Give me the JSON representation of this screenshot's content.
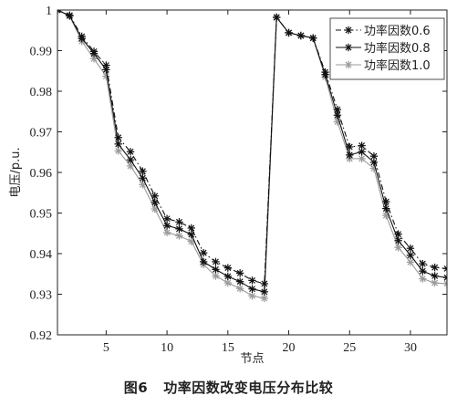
{
  "caption": "图6   功率因数改变电压分布比较",
  "chart_data": {
    "type": "line",
    "xlabel": "节点",
    "ylabel": "电压/p.u.",
    "xlim": [
      1,
      33
    ],
    "ylim": [
      0.92,
      1.0
    ],
    "xticks": [
      5,
      10,
      15,
      20,
      25,
      30
    ],
    "yticks": [
      0.92,
      0.93,
      0.94,
      0.95,
      0.96,
      0.97,
      0.98,
      0.99,
      1
    ],
    "ytick_labels": [
      "0.92",
      "0.93",
      "0.94",
      "0.95",
      "0.96",
      "0.97",
      "0.98",
      "0.99",
      "1"
    ],
    "grid": false,
    "legend_position": "top-right",
    "x": [
      1,
      2,
      3,
      4,
      5,
      6,
      7,
      8,
      9,
      10,
      11,
      12,
      13,
      14,
      15,
      16,
      17,
      18,
      19,
      20,
      21,
      22,
      23,
      24,
      25,
      26,
      27,
      28,
      29,
      30,
      31,
      32,
      33
    ],
    "series": [
      {
        "name": "功率因数0.6",
        "color": "#111111",
        "dash": "6,3,1.5,3",
        "values": [
          1.0,
          0.9987,
          0.9935,
          0.9898,
          0.9864,
          0.9686,
          0.9651,
          0.9603,
          0.9542,
          0.9486,
          0.9478,
          0.9463,
          0.9402,
          0.938,
          0.9365,
          0.9352,
          0.9334,
          0.9326,
          0.9982,
          0.9944,
          0.9937,
          0.9931,
          0.9847,
          0.9755,
          0.9663,
          0.9666,
          0.964,
          0.9528,
          0.9448,
          0.9413,
          0.9375,
          0.9366,
          0.9363
        ]
      },
      {
        "name": "功率因数0.8",
        "color": "#111111",
        "dash": "",
        "values": [
          1.0,
          0.9986,
          0.993,
          0.9893,
          0.9853,
          0.967,
          0.9631,
          0.9586,
          0.9526,
          0.9469,
          0.9461,
          0.9447,
          0.938,
          0.9361,
          0.9344,
          0.9331,
          0.9313,
          0.9306,
          0.9982,
          0.9944,
          0.9937,
          0.9931,
          0.9841,
          0.9741,
          0.9643,
          0.9651,
          0.9625,
          0.9511,
          0.9432,
          0.9396,
          0.9357,
          0.9345,
          0.9341
        ]
      },
      {
        "name": "功率因数1.0",
        "color": "#9a9a9a",
        "dash": "",
        "values": [
          1.0,
          0.9985,
          0.9923,
          0.988,
          0.9837,
          0.9653,
          0.9616,
          0.957,
          0.951,
          0.9452,
          0.9444,
          0.943,
          0.9373,
          0.9345,
          0.9328,
          0.9314,
          0.9296,
          0.929,
          0.9982,
          0.9944,
          0.9937,
          0.9931,
          0.9835,
          0.9725,
          0.9634,
          0.9634,
          0.961,
          0.9494,
          0.9415,
          0.9379,
          0.9338,
          0.9328,
          0.9326
        ]
      }
    ]
  }
}
